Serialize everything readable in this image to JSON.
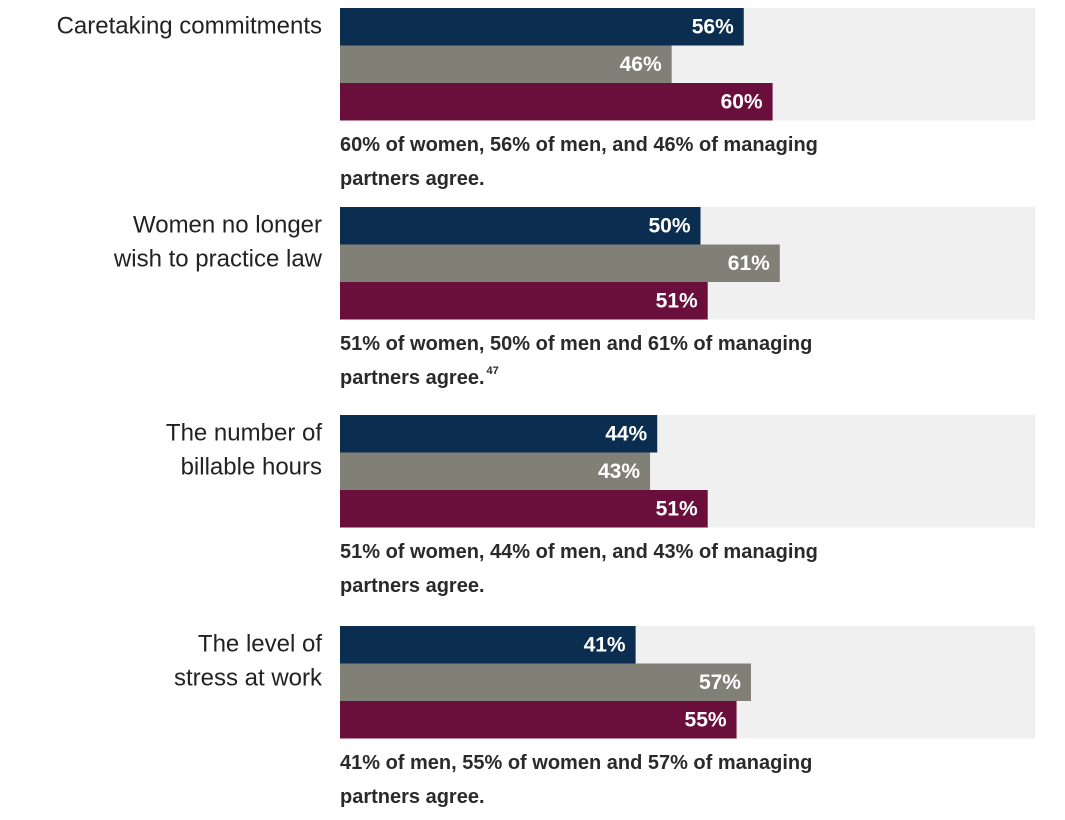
{
  "chart_data": {
    "type": "bar",
    "orientation": "horizontal",
    "categories": [
      [
        "Caretaking commitments"
      ],
      [
        "Women no longer",
        "wish to practice law"
      ],
      [
        "The number of",
        "billable hours"
      ],
      [
        "The level of",
        "stress at work"
      ]
    ],
    "series": [
      {
        "color": "#0b2d4f",
        "values": [
          56,
          50,
          44,
          41
        ],
        "value_labels": [
          "56%",
          "50%",
          "44%",
          "41%"
        ]
      },
      {
        "color": "#808077",
        "values": [
          46,
          61,
          43,
          57
        ],
        "value_labels": [
          "46%",
          "61%",
          "43%",
          "57%"
        ]
      },
      {
        "color": "#6a0f3b",
        "values": [
          60,
          51,
          51,
          55
        ],
        "value_labels": [
          "60%",
          "51%",
          "51%",
          "55%"
        ]
      }
    ],
    "xlim": [
      0,
      100
    ],
    "annotations": [
      {
        "lines": [
          "60% of women, 56% of men, and 46% of managing",
          "partners agree."
        ]
      },
      {
        "lines": [
          "51% of women, 50% of men and 61% of managing",
          "partners agree."
        ],
        "footnote": "47"
      },
      {
        "lines": [
          "51% of women, 44% of men, and 43% of managing",
          "partners agree."
        ]
      },
      {
        "lines": [
          "41% of men, 55% of women and 57% of managing",
          "partners agree."
        ]
      }
    ]
  }
}
